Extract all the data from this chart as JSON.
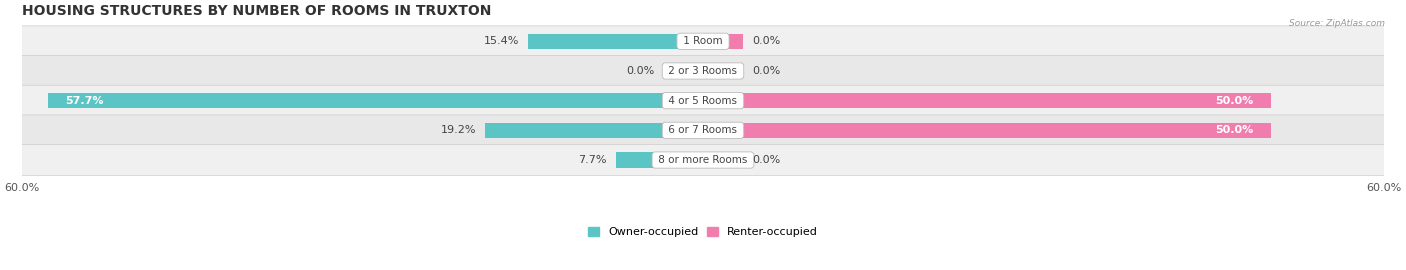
{
  "title": "HOUSING STRUCTURES BY NUMBER OF ROOMS IN TRUXTON",
  "source": "Source: ZipAtlas.com",
  "categories": [
    "1 Room",
    "2 or 3 Rooms",
    "4 or 5 Rooms",
    "6 or 7 Rooms",
    "8 or more Rooms"
  ],
  "owner_values": [
    15.4,
    0.0,
    57.7,
    19.2,
    7.7
  ],
  "renter_values": [
    0.0,
    0.0,
    50.0,
    50.0,
    0.0
  ],
  "owner_color": "#5BC4C4",
  "renter_color": "#F07DAE",
  "axis_max": 60.0,
  "legend_owner": "Owner-occupied",
  "legend_renter": "Renter-occupied",
  "title_fontsize": 10,
  "label_fontsize": 8,
  "cat_fontsize": 7.5,
  "bar_height": 0.52,
  "background_color": "#FFFFFF",
  "row_colors": [
    "#F0F0F0",
    "#E8E8E8"
  ],
  "min_bar_val": 3.5
}
